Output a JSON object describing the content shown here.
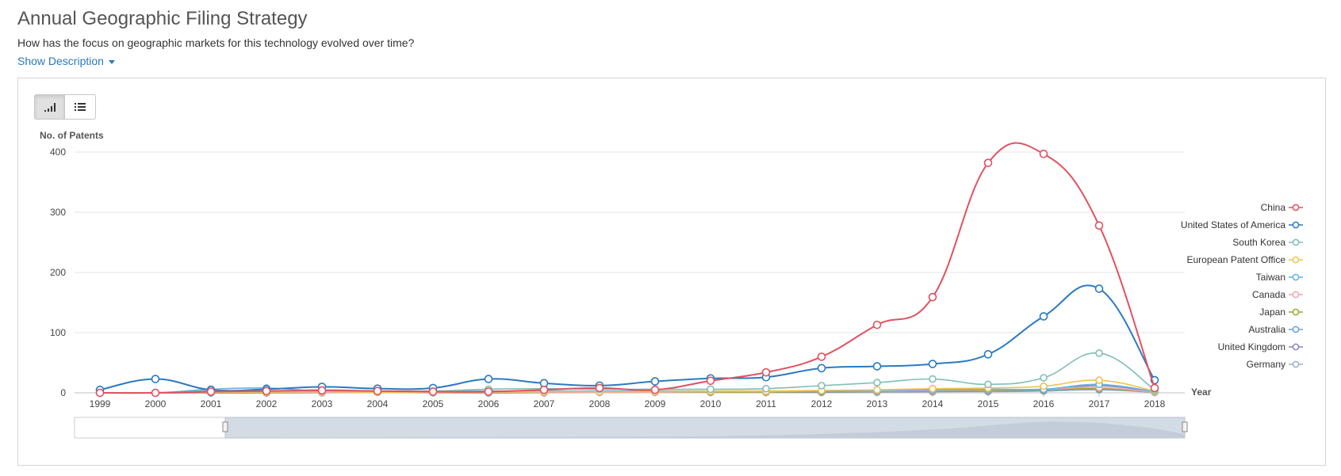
{
  "header": {
    "title": "Annual Geographic Filing Strategy",
    "subtitle": "How has the focus on geographic markets for this technology evolved over time?",
    "show_description": "Show Description"
  },
  "toolbar": {
    "chart_view_icon": "bar-chart-icon",
    "table_view_icon": "list-icon"
  },
  "chart_data": {
    "type": "line",
    "title": "",
    "ylabel": "No. of Patents",
    "xlabel": "Year",
    "ylim": [
      0,
      400
    ],
    "yticks": [
      0,
      100,
      200,
      300,
      400
    ],
    "x": [
      "1999",
      "2000",
      "2001",
      "2002",
      "2003",
      "2004",
      "2005",
      "2006",
      "2007",
      "2008",
      "2009",
      "2010",
      "2011",
      "2012",
      "2013",
      "2014",
      "2015",
      "2016",
      "2017",
      "2018"
    ],
    "grid": true,
    "legend_position": "right",
    "series": [
      {
        "name": "China",
        "color": "#e05261",
        "values": [
          0,
          0,
          2,
          3,
          4,
          3,
          2,
          2,
          5,
          8,
          5,
          20,
          34,
          60,
          113,
          159,
          382,
          397,
          278,
          8
        ]
      },
      {
        "name": "United States of America",
        "color": "#2b7ac1",
        "values": [
          5,
          23,
          5,
          6,
          10,
          7,
          8,
          23,
          16,
          12,
          19,
          24,
          26,
          41,
          44,
          48,
          64,
          127,
          173,
          21
        ]
      },
      {
        "name": "South Korea",
        "color": "#7fbfb5",
        "values": [
          0,
          0,
          4,
          3,
          5,
          3,
          3,
          6,
          7,
          6,
          6,
          6,
          7,
          12,
          17,
          23,
          14,
          25,
          66,
          5
        ]
      },
      {
        "name": "European Patent Office",
        "color": "#f0c24a",
        "values": [
          0,
          0,
          1,
          1,
          2,
          1,
          1,
          1,
          2,
          2,
          2,
          3,
          3,
          4,
          5,
          7,
          8,
          11,
          21,
          3
        ]
      },
      {
        "name": "Taiwan",
        "color": "#5fb3e8",
        "values": [
          0,
          0,
          6,
          8,
          3,
          3,
          3,
          3,
          3,
          3,
          3,
          3,
          3,
          3,
          4,
          5,
          6,
          6,
          14,
          2
        ]
      },
      {
        "name": "Canada",
        "color": "#f2a3b0",
        "values": [
          0,
          0,
          1,
          1,
          1,
          1,
          1,
          1,
          1,
          1,
          1,
          2,
          2,
          3,
          3,
          4,
          5,
          6,
          9,
          1
        ]
      },
      {
        "name": "Japan",
        "color": "#9aaa2d",
        "values": [
          0,
          0,
          1,
          1,
          1,
          1,
          1,
          1,
          1,
          1,
          1,
          1,
          1,
          2,
          2,
          3,
          4,
          5,
          7,
          1
        ]
      },
      {
        "name": "Australia",
        "color": "#6b9ee0",
        "values": [
          0,
          0,
          0,
          1,
          1,
          1,
          1,
          1,
          1,
          1,
          1,
          1,
          1,
          2,
          2,
          3,
          3,
          4,
          6,
          1
        ]
      },
      {
        "name": "United Kingdom",
        "color": "#8a84c0",
        "values": [
          0,
          0,
          0,
          0,
          1,
          1,
          1,
          0,
          1,
          1,
          1,
          1,
          1,
          1,
          2,
          2,
          3,
          4,
          12,
          1
        ]
      },
      {
        "name": "Germany",
        "color": "#9db0c8",
        "values": [
          0,
          0,
          0,
          0,
          0,
          1,
          0,
          0,
          0,
          1,
          1,
          1,
          1,
          1,
          1,
          2,
          2,
          3,
          5,
          1
        ]
      }
    ]
  }
}
